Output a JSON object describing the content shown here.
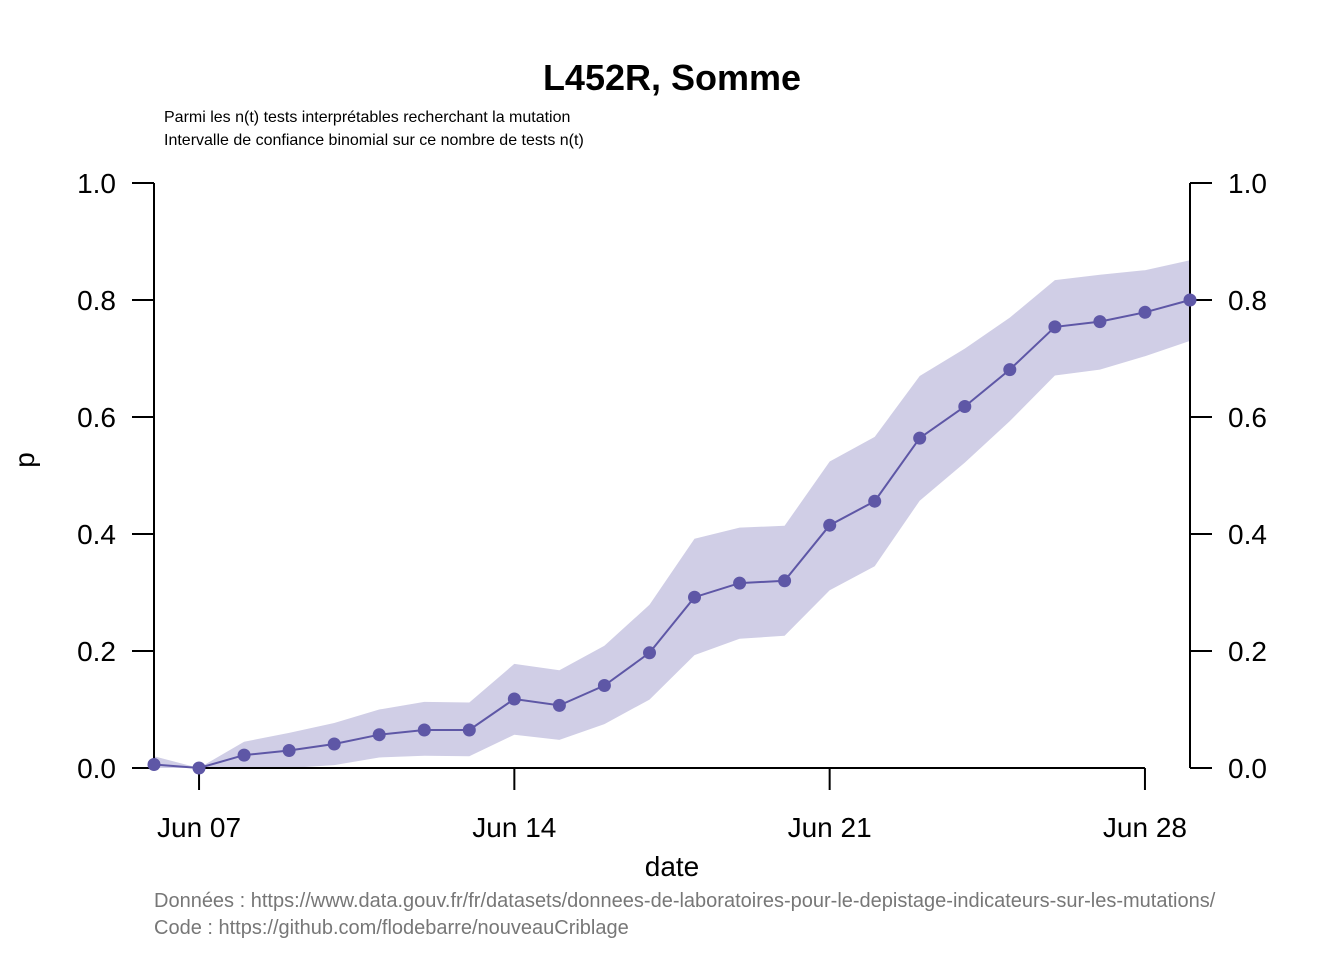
{
  "chart_data": {
    "type": "line",
    "title": "L452R, Somme",
    "subtitle_lines": [
      "Parmi les n(t) tests interprétables recherchant la mutation",
      "Intervalle de confiance binomial sur ce nombre de tests n(t)"
    ],
    "xlabel": "date",
    "ylabel": "p",
    "xlim": [
      "2021-06-06",
      "2021-06-29"
    ],
    "ylim": [
      0,
      1
    ],
    "y_ticks": [
      "0.0",
      "0.2",
      "0.4",
      "0.6",
      "0.8",
      "1.0"
    ],
    "x_ticks": [
      {
        "date": "2021-06-07",
        "label": "Jun 07"
      },
      {
        "date": "2021-06-14",
        "label": "Jun 14"
      },
      {
        "date": "2021-06-21",
        "label": "Jun 21"
      },
      {
        "date": "2021-06-28",
        "label": "Jun 28"
      }
    ],
    "grid": false,
    "secondary_y_axis": true,
    "colors": {
      "line": "#5e57a6",
      "band": "#d0cee6",
      "caption": "#777777"
    },
    "series": [
      {
        "x": [
          "2021-06-06",
          "2021-06-07",
          "2021-06-08",
          "2021-06-09",
          "2021-06-10",
          "2021-06-11",
          "2021-06-12",
          "2021-06-13",
          "2021-06-14",
          "2021-06-15",
          "2021-06-16",
          "2021-06-17",
          "2021-06-18",
          "2021-06-19",
          "2021-06-20",
          "2021-06-21",
          "2021-06-22",
          "2021-06-23",
          "2021-06-24",
          "2021-06-25",
          "2021-06-26",
          "2021-06-27",
          "2021-06-28",
          "2021-06-29"
        ],
        "y": [
          0.006,
          0.0,
          0.022,
          0.03,
          0.041,
          0.057,
          0.065,
          0.065,
          0.118,
          0.107,
          0.141,
          0.197,
          0.292,
          0.316,
          0.32,
          0.415,
          0.456,
          0.564,
          0.618,
          0.681,
          0.754,
          0.763,
          0.779,
          0.8
        ],
        "lower": [
          0.0,
          0.0,
          0.0,
          0.0,
          0.005,
          0.018,
          0.021,
          0.02,
          0.057,
          0.048,
          0.075,
          0.117,
          0.193,
          0.221,
          0.226,
          0.304,
          0.345,
          0.457,
          0.522,
          0.593,
          0.671,
          0.681,
          0.704,
          0.73
        ],
        "upper": [
          0.02,
          0.0,
          0.045,
          0.06,
          0.077,
          0.1,
          0.113,
          0.112,
          0.178,
          0.167,
          0.209,
          0.279,
          0.392,
          0.411,
          0.414,
          0.524,
          0.566,
          0.67,
          0.717,
          0.77,
          0.834,
          0.843,
          0.851,
          0.868
        ]
      }
    ]
  },
  "caption": {
    "data_line": "Données : https://www.data.gouv.fr/fr/datasets/donnees-de-laboratoires-pour-le-depistage-indicateurs-sur-les-mutations/",
    "code_line": "Code : https://github.com/flodebarre/nouveauCriblage"
  }
}
